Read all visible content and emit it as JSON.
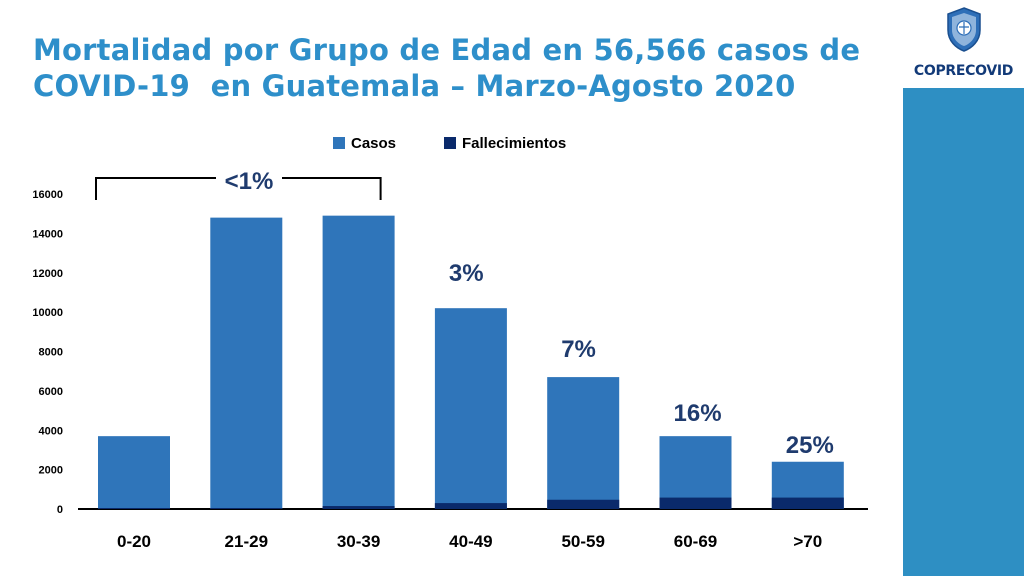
{
  "header": {
    "title_line1": "Mortalidad por Grupo de Edad en 56,566 casos de",
    "title_line2": "COVID-19  en Guatemala – Marzo-Agosto 2020"
  },
  "logo": {
    "text": "COPRECOVID",
    "emblem_icon": "shield-emblem-icon"
  },
  "colors": {
    "title": "#2e8fca",
    "casos": "#2f75ba",
    "fallecimientos": "#0a2a6b",
    "annotation": "#1f3b6e",
    "side_band": "#2e8fc3"
  },
  "chart_data": {
    "type": "bar",
    "stacked": true,
    "categories": [
      "0-20",
      "21-29",
      "30-39",
      "40-49",
      "50-59",
      "60-69",
      ">70"
    ],
    "series": [
      {
        "name": "Casos",
        "values": [
          3700,
          14800,
          14900,
          10200,
          6700,
          3700,
          2400
        ]
      },
      {
        "name": "Fallecimientos",
        "values": [
          10,
          50,
          150,
          300,
          470,
          580,
          580
        ]
      }
    ],
    "ylim": [
      0,
      16000
    ],
    "yticks": [
      "0",
      "2000",
      "4000",
      "6000",
      "8000",
      "10000",
      "12000",
      "14000",
      "16000"
    ],
    "legend_position": "top-center",
    "grid": false,
    "annotations": [
      {
        "text": "<1%",
        "spans": [
          "0-20",
          "30-39"
        ],
        "bracket": true
      },
      {
        "text": "3%",
        "category": "40-49"
      },
      {
        "text": "7%",
        "category": "50-59"
      },
      {
        "text": "16%",
        "category": "60-69"
      },
      {
        "text": "25%",
        "category": ">70"
      }
    ]
  }
}
